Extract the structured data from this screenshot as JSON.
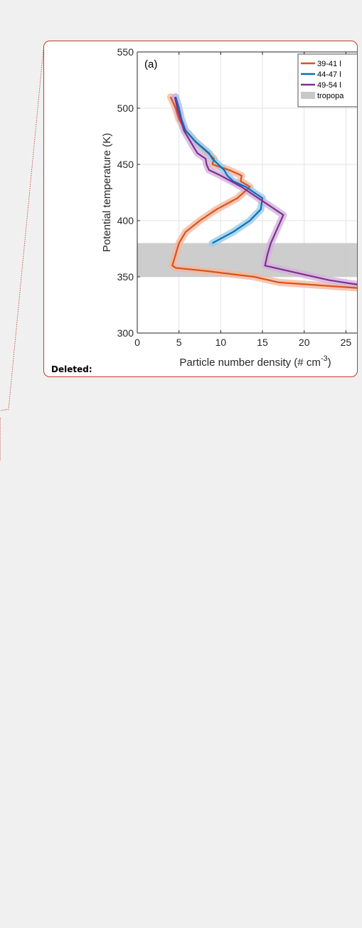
{
  "annotation": {
    "label": "Deleted:",
    "border_color": "#c0392b"
  },
  "chart_data": {
    "type": "line",
    "panel_label": "(a)",
    "xlabel": "Particle number density (# cm",
    "xlabel_exponent": "-3",
    "xlabel_close": ")",
    "ylabel": "Potential temperature (K)",
    "xlim": [
      0,
      26.5
    ],
    "ylim": [
      300,
      550
    ],
    "xticks": [
      0,
      5,
      10,
      15,
      20,
      25
    ],
    "yticks": [
      300,
      350,
      400,
      450,
      500,
      550
    ],
    "grid": true,
    "legend_position": "top-right",
    "tropopause_band": {
      "label": "tropopa",
      "y_range": [
        350,
        380
      ],
      "color": "#c8c8c8"
    },
    "series": [
      {
        "name": "39-41 l",
        "color": "#d95319",
        "shade": "#f2b9a0",
        "x": [
          4.0,
          4.6,
          5.0,
          5.8,
          7.0,
          8.5,
          9.2,
          9.0,
          11.0,
          12.5,
          12.4,
          13.5,
          12.0,
          9.5,
          7.5,
          5.8,
          5.0,
          4.6,
          4.2,
          4.6,
          8.5,
          14.0,
          17.0,
          26.5
        ],
        "y": [
          510,
          500,
          490,
          480,
          470,
          460,
          455,
          450,
          445,
          440,
          435,
          430,
          420,
          410,
          400,
          390,
          380,
          370,
          360,
          358,
          355,
          350,
          345,
          340
        ]
      },
      {
        "name": "44-47 l",
        "color": "#0072bd",
        "shade": "#9ccbe8",
        "x": [
          4.6,
          5.0,
          5.3,
          5.8,
          7.0,
          8.6,
          9.0,
          9.7,
          10.4,
          10.8,
          11.5,
          13.0,
          15.0,
          14.8,
          13.5,
          11.5,
          9.0
        ],
        "y": [
          510,
          500,
          490,
          480,
          470,
          460,
          455,
          450,
          445,
          440,
          435,
          430,
          420,
          410,
          400,
          390,
          380
        ]
      },
      {
        "name": "49-54 l",
        "color": "#7e2f8e",
        "shade": "#d3b1dc",
        "x": [
          4.5,
          4.8,
          5.2,
          5.6,
          6.4,
          7.2,
          8.2,
          8.3,
          8.6,
          10.0,
          12.5,
          15.5,
          17.5,
          16.0,
          15.6,
          15.3,
          16.5,
          20.0,
          23.0,
          26.5
        ],
        "y": [
          510,
          500,
          490,
          480,
          470,
          460,
          455,
          450,
          445,
          440,
          430,
          415,
          405,
          380,
          370,
          360,
          358,
          352,
          347,
          343
        ]
      }
    ]
  }
}
